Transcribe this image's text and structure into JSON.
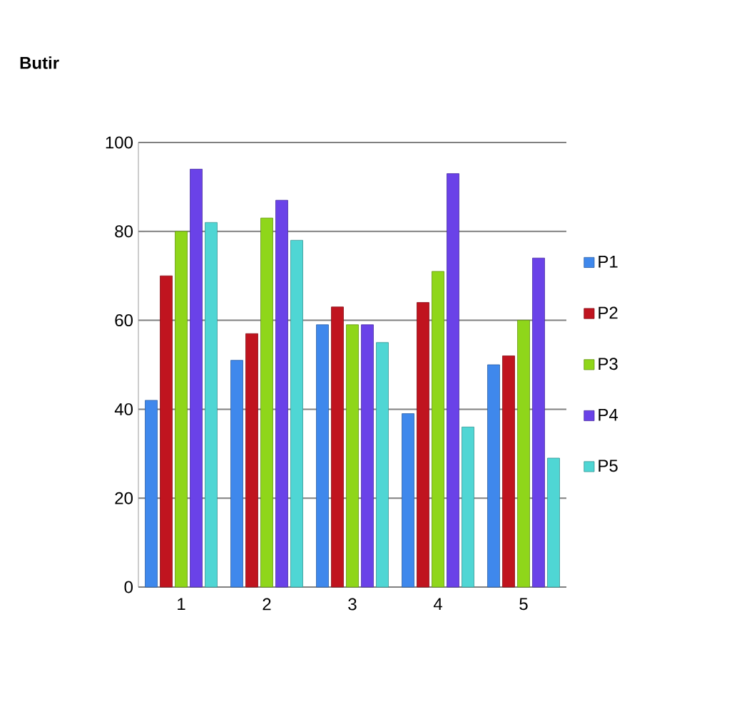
{
  "chart_data": {
    "type": "bar",
    "title": "Butir",
    "categories": [
      "1",
      "2",
      "3",
      "4",
      "5"
    ],
    "series": [
      {
        "name": "P1",
        "color": "#3f88ec",
        "values": [
          42,
          51,
          59,
          39,
          50
        ]
      },
      {
        "name": "P2",
        "color": "#c0141f",
        "values": [
          70,
          57,
          63,
          64,
          52
        ]
      },
      {
        "name": "P3",
        "color": "#8fd61a",
        "values": [
          80,
          83,
          59,
          71,
          60
        ]
      },
      {
        "name": "P4",
        "color": "#6a42e8",
        "values": [
          94,
          87,
          59,
          93,
          74
        ]
      },
      {
        "name": "P5",
        "color": "#4fd6d4",
        "values": [
          82,
          78,
          55,
          36,
          29
        ]
      }
    ],
    "ylim": [
      0,
      100
    ],
    "yticks": [
      0,
      20,
      40,
      60,
      80,
      100
    ],
    "grid": "y",
    "legend": "right"
  }
}
